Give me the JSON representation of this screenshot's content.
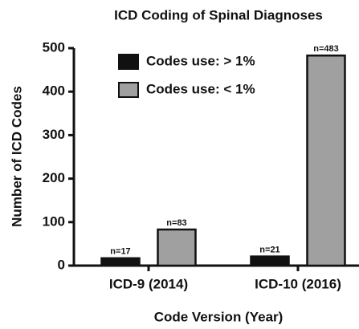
{
  "chart_data": {
    "type": "bar",
    "title": "ICD Coding of Spinal Diagnoses",
    "x_label": "Code Version (Year)",
    "y_label": "Number of ICD Codes",
    "categories": [
      "ICD-9 (2014)",
      "ICD-10 (2016)"
    ],
    "series": [
      {
        "name": "Codes use: > 1%",
        "color": "#111111",
        "values": [
          17,
          21
        ],
        "value_labels": [
          "n=17",
          "n=21"
        ]
      },
      {
        "name": "Codes use: < 1%",
        "color": "#a0a0a0",
        "values": [
          83,
          483
        ],
        "value_labels": [
          "n=83",
          "n=483"
        ]
      }
    ],
    "ylim": [
      0,
      500
    ],
    "yticks": [
      0,
      100,
      200,
      300,
      400,
      500
    ],
    "legend": "upper left"
  }
}
